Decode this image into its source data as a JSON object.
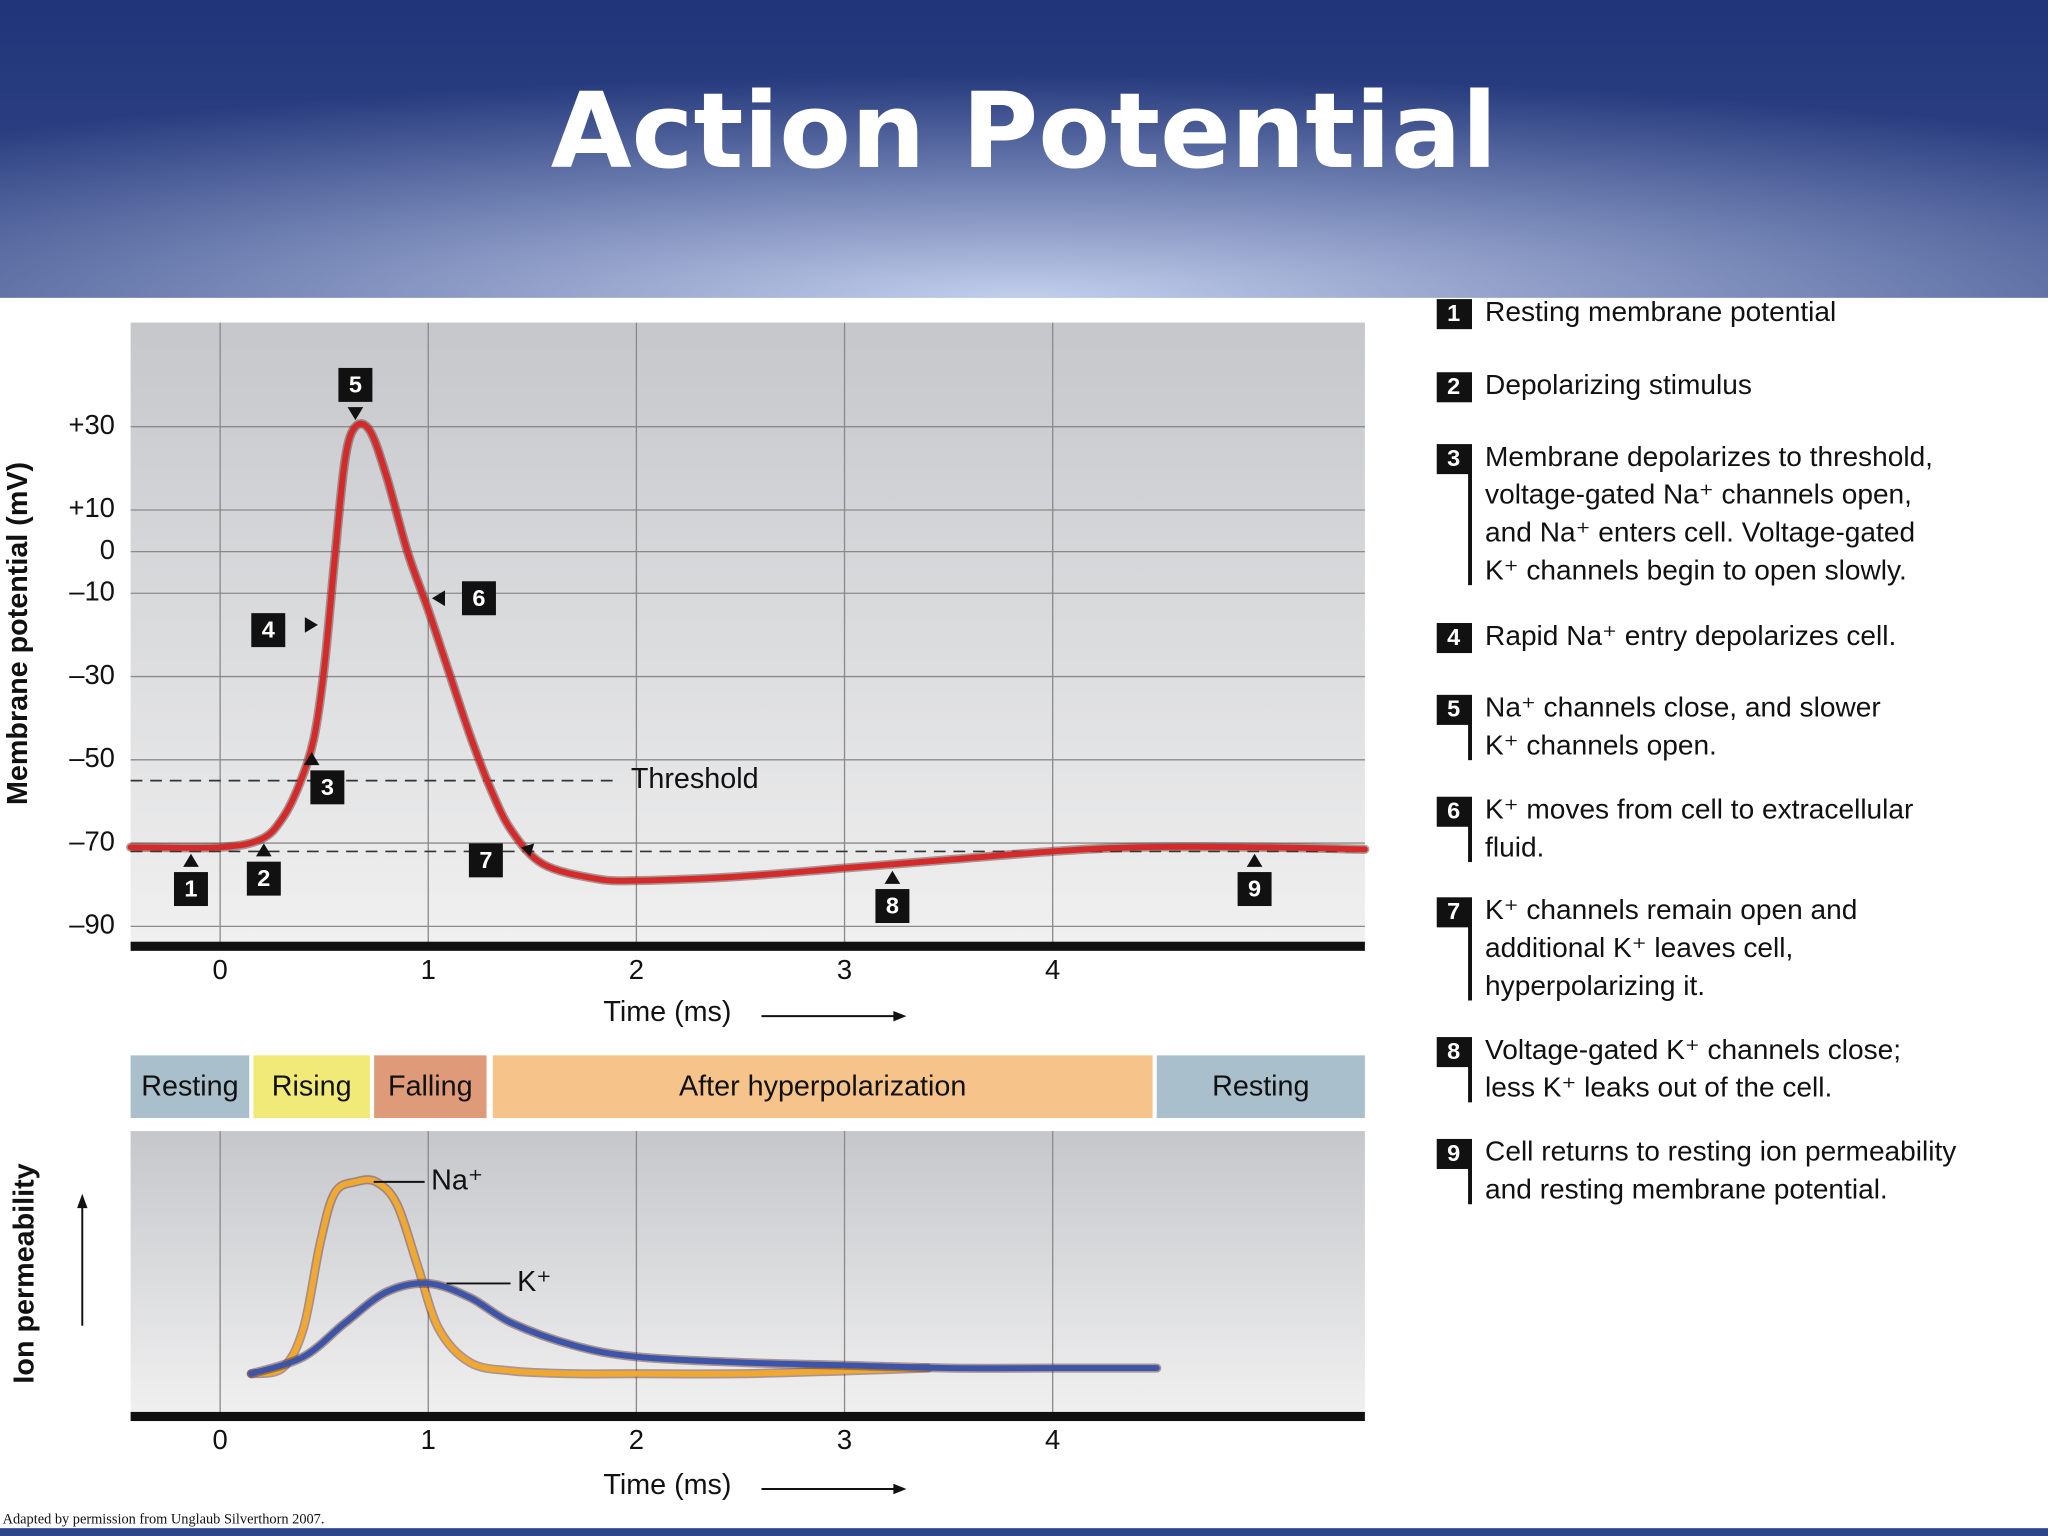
{
  "title": "Action Potential",
  "chart_data": [
    {
      "type": "line",
      "xlabel": "Time (ms)",
      "ylabel": "Membrane potential (mV)",
      "x": [
        -0.43,
        0,
        0.2,
        0.3,
        0.38,
        0.45,
        0.5,
        0.55,
        0.6,
        0.65,
        0.72,
        0.8,
        0.9,
        1.0,
        1.1,
        1.2,
        1.3,
        1.4,
        1.55,
        1.8,
        2.0,
        2.5,
        3.0,
        3.5,
        4.0,
        4.4,
        5.0,
        5.5
      ],
      "values": [
        -71,
        -71,
        -69,
        -64,
        -56,
        -45,
        -28,
        -2,
        22,
        30,
        29,
        18,
        0,
        -14,
        -29,
        -44,
        -57,
        -67,
        -75,
        -78.5,
        -79,
        -78,
        -76,
        -74,
        -72,
        -71,
        -71,
        -71.5
      ],
      "color": "#d42a2a",
      "xlim": [
        -0.43,
        5.5
      ],
      "ylim": [
        -94,
        55
      ],
      "xticks": [
        0,
        1,
        2,
        3,
        4
      ],
      "yticks": [
        {
          "value": 30,
          "label": "+30"
        },
        {
          "value": 10,
          "label": "+10"
        },
        0,
        {
          "value": -10,
          "label": "–10"
        },
        {
          "value": -30,
          "label": "–30"
        },
        {
          "value": -50,
          "label": "–50"
        },
        {
          "value": -70,
          "label": "–70"
        },
        {
          "value": -90,
          "label": "–90"
        }
      ],
      "grid": true,
      "reference_lines": [
        {
          "value": -55,
          "label": "Threshold"
        },
        {
          "value": -72
        }
      ],
      "markers": [
        {
          "label": "1",
          "x": -0.14
        },
        {
          "label": "2",
          "x": 0.21
        },
        {
          "label": "3",
          "x": 0.44
        },
        {
          "label": "4",
          "x": 0.52
        },
        {
          "label": "5",
          "x": 0.65
        },
        {
          "label": "6",
          "x": 0.98
        },
        {
          "label": "7",
          "x": 1.44
        },
        {
          "label": "8",
          "x": 3.23
        },
        {
          "label": "9",
          "x": 4.97
        }
      ]
    },
    {
      "type": "line",
      "xlabel": "Time (ms)",
      "ylabel": "Ion permeability",
      "xlim": [
        -0.43,
        5.5
      ],
      "ylim": [
        0,
        1
      ],
      "xticks": [
        0,
        1,
        2,
        3,
        4
      ],
      "grid": true,
      "phases": [
        {
          "name": "Resting",
          "start": -0.43,
          "end": 0.14,
          "color": "#a9bfcb"
        },
        {
          "name": "Rising",
          "start": 0.16,
          "end": 0.72,
          "color": "#f1ea78"
        },
        {
          "name": "Falling",
          "start": 0.74,
          "end": 1.28,
          "color": "#de9a79"
        },
        {
          "name": "After hyperpolarization",
          "start": 1.31,
          "end": 4.48,
          "color": "#f6c48b"
        },
        {
          "name": "Resting",
          "start": 4.5,
          "end": 5.5,
          "color": "#a9bfcb"
        }
      ],
      "series": [
        {
          "name": "Na⁺",
          "color": "#f0a830",
          "x": [
            0.15,
            0.3,
            0.4,
            0.48,
            0.55,
            0.65,
            0.75,
            0.85,
            0.95,
            1.05,
            1.2,
            1.4,
            1.7,
            2.0,
            2.5,
            3.0,
            3.4
          ],
          "values": [
            0.14,
            0.16,
            0.3,
            0.6,
            0.78,
            0.82,
            0.82,
            0.74,
            0.52,
            0.3,
            0.18,
            0.15,
            0.14,
            0.14,
            0.14,
            0.15,
            0.16
          ]
        },
        {
          "name": "K⁺",
          "color": "#3d55a8",
          "x": [
            0.15,
            0.4,
            0.6,
            0.8,
            1.0,
            1.2,
            1.4,
            1.7,
            2.0,
            2.5,
            3.0,
            3.5,
            4.0,
            4.5
          ],
          "values": [
            0.14,
            0.2,
            0.32,
            0.43,
            0.46,
            0.41,
            0.32,
            0.24,
            0.2,
            0.18,
            0.17,
            0.16,
            0.16,
            0.16
          ]
        }
      ]
    }
  ],
  "steps": [
    {
      "number": "1",
      "lines": [
        "Resting membrane potential"
      ]
    },
    {
      "number": "2",
      "lines": [
        "Depolarizing stimulus"
      ]
    },
    {
      "number": "3",
      "lines": [
        "Membrane depolarizes to threshold,",
        "voltage-gated Na⁺ channels open,",
        "and Na⁺ enters cell.  Voltage-gated",
        "K⁺ channels begin to open slowly."
      ]
    },
    {
      "number": "4",
      "lines": [
        "Rapid Na⁺ entry depolarizes cell."
      ]
    },
    {
      "number": "5",
      "lines": [
        "Na⁺ channels close, and slower",
        "K⁺ channels open."
      ]
    },
    {
      "number": "6",
      "lines": [
        "K⁺ moves from cell to extracellular",
        "fluid."
      ]
    },
    {
      "number": "7",
      "lines": [
        "K⁺ channels remain open and",
        "additional K⁺ leaves cell,",
        "hyperpolarizing it."
      ]
    },
    {
      "number": "8",
      "lines": [
        "Voltage-gated K⁺ channels close;",
        "less K⁺ leaks out of the cell."
      ]
    },
    {
      "number": "9",
      "lines": [
        "Cell returns to resting ion permeability",
        "and resting membrane potential."
      ]
    }
  ],
  "credit": "Adapted by permission from Unglaub Silverthorn 2007."
}
